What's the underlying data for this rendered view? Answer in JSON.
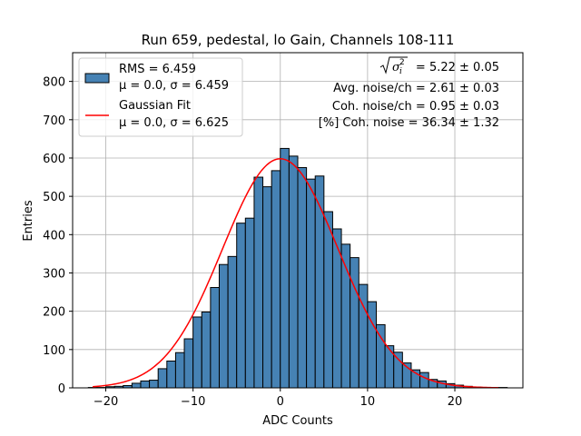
{
  "chart_data": {
    "type": "bar",
    "title": "Run 659, pedestal, lo Gain, Channels 108-111",
    "xlabel": "ADC Counts",
    "ylabel": "Entries",
    "xlim": [
      -23.8,
      27.8
    ],
    "ylim": [
      0,
      875
    ],
    "grid": true,
    "xticks": [
      -20,
      -10,
      0,
      10,
      20
    ],
    "xtick_labels": [
      "−20",
      "−10",
      "0",
      "10",
      "20"
    ],
    "yticks": [
      0,
      100,
      200,
      300,
      400,
      500,
      600,
      700,
      800
    ],
    "bin_edges": [
      -22,
      -21,
      -20,
      -19,
      -18,
      -17,
      -16,
      -15,
      -14,
      -13,
      -12,
      -11,
      -10,
      -9,
      -8,
      -7,
      -6,
      -5,
      -4,
      -3,
      -2,
      -1,
      0,
      1,
      2,
      3,
      4,
      5,
      6,
      7,
      8,
      9,
      10,
      11,
      12,
      13,
      14,
      15,
      16,
      17,
      18,
      19,
      20,
      21,
      22,
      23,
      24,
      25,
      26
    ],
    "counts": [
      1,
      1,
      3,
      4,
      6,
      12,
      18,
      20,
      50,
      70,
      92,
      128,
      185,
      198,
      262,
      322,
      343,
      430,
      443,
      550,
      525,
      567,
      625,
      605,
      575,
      545,
      553,
      460,
      415,
      375,
      340,
      270,
      225,
      165,
      110,
      93,
      65,
      47,
      40,
      22,
      18,
      11,
      7,
      4,
      2,
      1,
      1,
      1
    ],
    "series": [
      {
        "name": "histogram",
        "legend": "RMS = 6.459",
        "legend_sub": "μ = 0.0, σ = 6.459",
        "color": "#4682b4"
      },
      {
        "name": "gaussian_fit",
        "legend": "Gaussian Fit",
        "legend_sub": "μ = 0.0, σ = 6.625",
        "color": "#ff0000",
        "mu": 0.0,
        "sigma": 6.625,
        "amplitude": 598,
        "x_range": [
          -21.5,
          25
        ]
      }
    ],
    "annotations": {
      "sigma_i_value": "= 5.22 ± 0.05",
      "avg_noise": "Avg. noise/ch = 2.61 ± 0.03",
      "coh_noise": "Coh. noise/ch = 0.95 ± 0.03",
      "pct_coh_noise": "[%] Coh. noise = 36.34 ± 1.32"
    }
  }
}
